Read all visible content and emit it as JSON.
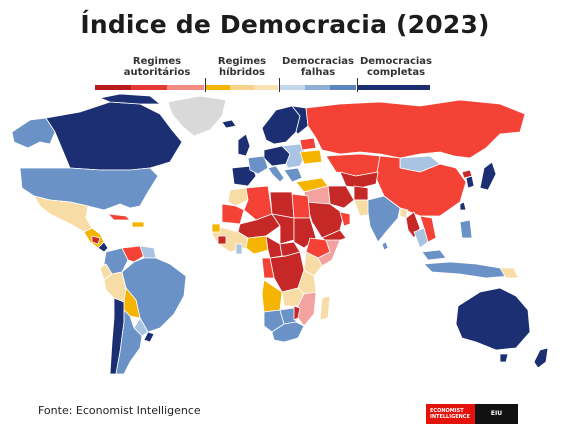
{
  "title": "Índice de Democracia (2023)",
  "legend": [
    {
      "line1": "Regimes",
      "line2": "autoritários",
      "colors": [
        "#c62828",
        "#e53935",
        "#f28b82"
      ]
    },
    {
      "line1": "Regimes",
      "line2": "híbridos",
      "colors": [
        "#f5b400",
        "#f6d28a",
        "#f9e2b5"
      ]
    },
    {
      "line1": "Democracias",
      "line2": "falhas",
      "colors": [
        "#c5d6ea",
        "#8fb0d4",
        "#5a86bd"
      ]
    },
    {
      "line1": "Democracias",
      "line2": "completas",
      "colors": [
        "#1b2f72"
      ]
    }
  ],
  "colors": {
    "authoritarian_dark": "#b71c1c",
    "authoritarian": "#f44336",
    "authoritarian_light": "#f3a2a0",
    "hybrid": "#f5b400",
    "hybrid_light": "#f8dca5",
    "flawed_light": "#a9c3e2",
    "flawed": "#6b92c6",
    "full": "#1b2f72",
    "no_data": "#d9d9d9"
  },
  "footer": {
    "source": "Fonte: Economist Intelligence",
    "logo_top": "ECONOMIST",
    "logo_bottom": "INTELLIGENCE",
    "logo_right": "EIU"
  }
}
